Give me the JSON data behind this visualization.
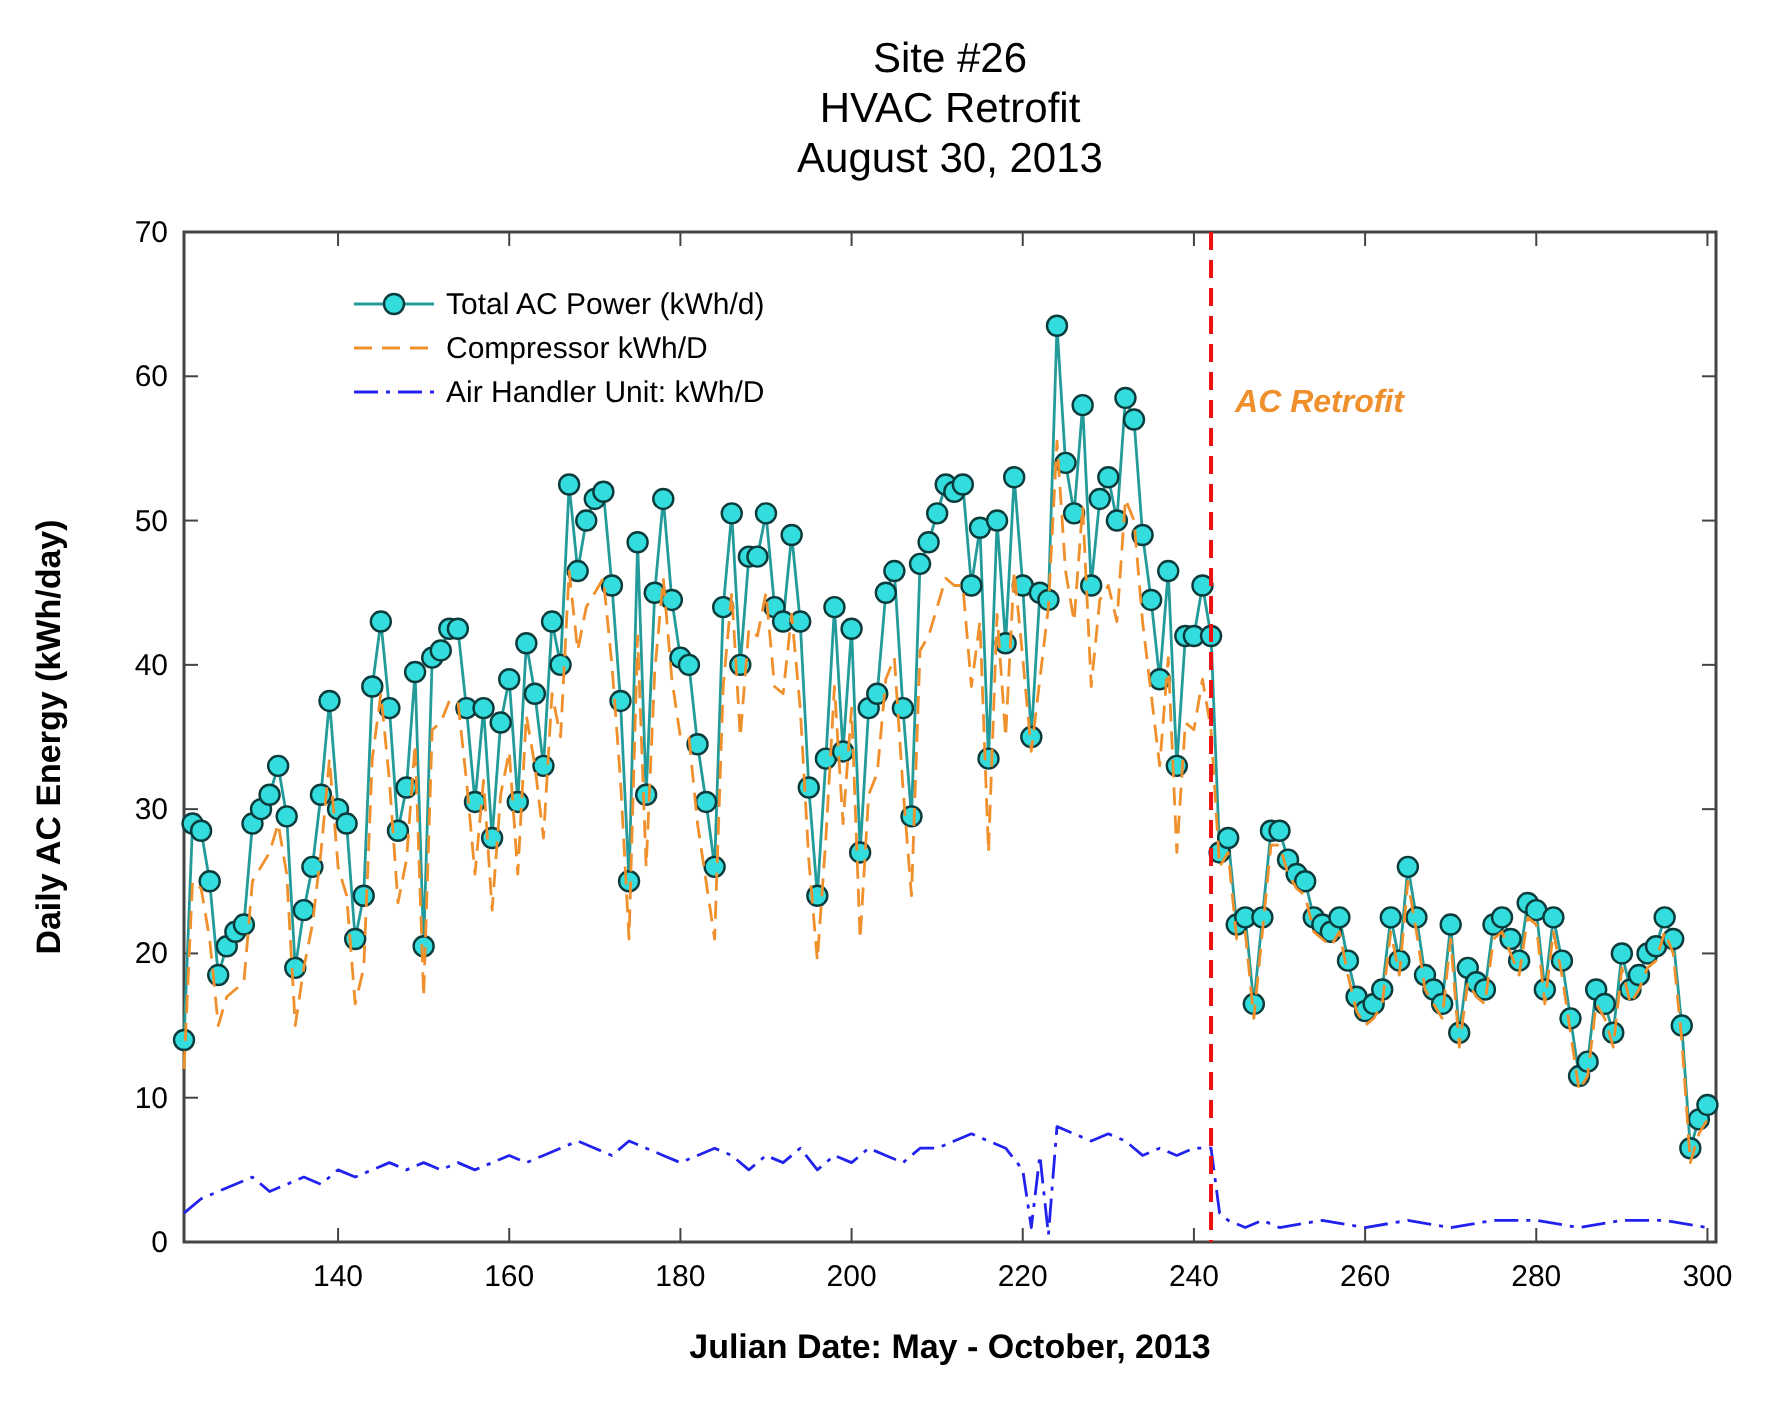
{
  "chart_data": {
    "type": "line",
    "title": "Site #26\nHVAC Retrofit\nAugust 30, 2013",
    "xlabel": "Julian Date: May  - October, 2013",
    "ylabel": "Daily AC Energy (kWh/day)",
    "xlim": [
      122,
      301
    ],
    "xticks": [
      140,
      160,
      180,
      200,
      220,
      240,
      260,
      280,
      300
    ],
    "ylim": [
      0,
      70
    ],
    "yticks": [
      0,
      10,
      20,
      30,
      40,
      50,
      60,
      70
    ],
    "grid": false,
    "legend": "top left",
    "ref_lines": [
      {
        "axis": "x",
        "value": 242,
        "label": "AC Retrofit",
        "color": "#ee1111",
        "line_style": "dashed"
      }
    ],
    "series": [
      {
        "name": "Total AC Power (kWh/d)",
        "color": "#33dddd",
        "marker": "circle",
        "line_style": "solid",
        "x": [
          122,
          123,
          124,
          125,
          126,
          127,
          128,
          129,
          130,
          131,
          132,
          133,
          134,
          135,
          136,
          137,
          138,
          139,
          140,
          141,
          142,
          143,
          144,
          145,
          146,
          147,
          148,
          149,
          150,
          151,
          152,
          153,
          154,
          155,
          156,
          157,
          158,
          159,
          160,
          161,
          162,
          163,
          164,
          165,
          166,
          167,
          168,
          169,
          170,
          171,
          172,
          173,
          174,
          175,
          176,
          177,
          178,
          179,
          180,
          181,
          182,
          183,
          184,
          185,
          186,
          187,
          188,
          189,
          190,
          191,
          192,
          193,
          194,
          195,
          196,
          197,
          198,
          199,
          200,
          201,
          202,
          203,
          204,
          205,
          206,
          207,
          208,
          209,
          210,
          211,
          212,
          213,
          214,
          215,
          216,
          217,
          218,
          219,
          220,
          221,
          222,
          223,
          224,
          225,
          226,
          227,
          228,
          229,
          230,
          231,
          232,
          233,
          234,
          235,
          236,
          237,
          238,
          239,
          240,
          241,
          242,
          243,
          244,
          245,
          246,
          247,
          248,
          249,
          250,
          251,
          252,
          253,
          254,
          255,
          256,
          257,
          258,
          259,
          260,
          261,
          262,
          263,
          264,
          265,
          266,
          267,
          268,
          269,
          270,
          271,
          272,
          273,
          274,
          275,
          276,
          277,
          278,
          279,
          280,
          281,
          282,
          283,
          284,
          285,
          286,
          287,
          288,
          289,
          290,
          291,
          292,
          293,
          294,
          295,
          296,
          297,
          298,
          299,
          300
        ],
        "values": [
          14,
          29,
          28.5,
          25,
          18.5,
          20.5,
          21.5,
          22,
          29,
          30,
          31,
          33,
          29.5,
          19,
          23,
          26,
          31,
          37.5,
          30,
          29,
          21,
          24,
          38.5,
          43,
          37,
          28.5,
          31.5,
          39.5,
          20.5,
          40.5,
          41,
          42.5,
          42.5,
          37,
          30.5,
          37,
          28,
          36,
          39,
          30.5,
          41.5,
          38,
          33,
          43,
          40,
          52.5,
          46.5,
          50,
          51.5,
          52,
          45.5,
          37.5,
          25,
          48.5,
          31,
          45,
          51.5,
          44.5,
          40.5,
          40,
          34.5,
          30.5,
          26,
          44,
          50.5,
          40,
          47.5,
          47.5,
          50.5,
          44,
          43,
          49,
          43,
          31.5,
          24,
          33.5,
          44,
          34,
          42.5,
          27,
          37,
          38,
          45,
          46.5,
          37,
          29.5,
          47,
          48.5,
          50.5,
          52.5,
          52,
          52.5,
          45.5,
          49.5,
          33.5,
          50,
          41.5,
          53,
          45.5,
          35,
          45,
          44.5,
          63.5,
          54,
          50.5,
          58,
          45.5,
          51.5,
          53,
          50,
          58.5,
          57,
          49,
          44.5,
          39,
          46.5,
          33,
          42,
          42,
          45.5,
          42,
          27,
          28,
          22,
          22.5,
          16.5,
          22.5,
          28.5,
          28.5,
          26.5,
          25.5,
          25,
          22.5,
          22,
          21.5,
          22.5,
          19.5,
          17,
          16,
          16.5,
          17.5,
          22.5,
          19.5,
          26,
          22.5,
          18.5,
          17.5,
          16.5,
          22,
          14.5,
          19,
          18,
          17.5,
          22,
          22.5,
          21,
          19.5,
          23.5,
          23,
          17.5,
          22.5,
          19.5,
          15.5,
          11.5,
          12.5,
          17.5,
          16.5,
          14.5,
          20,
          17.5,
          18.5,
          20,
          20.5,
          22.5,
          21,
          15,
          6.5,
          8.5,
          9.5
        ]
      },
      {
        "name": "Compressor kWh/D",
        "color": "#f0902c",
        "marker": "none",
        "line_style": "dashed",
        "x": [
          122,
          123,
          124,
          125,
          126,
          127,
          128,
          129,
          130,
          131,
          132,
          133,
          134,
          135,
          136,
          137,
          138,
          139,
          140,
          141,
          142,
          143,
          144,
          145,
          146,
          147,
          148,
          149,
          150,
          151,
          152,
          153,
          154,
          155,
          156,
          157,
          158,
          159,
          160,
          161,
          162,
          163,
          164,
          165,
          166,
          167,
          168,
          169,
          170,
          171,
          172,
          173,
          174,
          175,
          176,
          177,
          178,
          179,
          180,
          181,
          182,
          183,
          184,
          185,
          186,
          187,
          188,
          189,
          190,
          191,
          192,
          193,
          194,
          195,
          196,
          197,
          198,
          199,
          200,
          201,
          202,
          203,
          204,
          205,
          206,
          207,
          208,
          209,
          210,
          211,
          212,
          213,
          214,
          215,
          216,
          217,
          218,
          219,
          220,
          221,
          222,
          223,
          224,
          225,
          226,
          227,
          228,
          229,
          230,
          231,
          232,
          233,
          234,
          235,
          236,
          237,
          238,
          239,
          240,
          241,
          242,
          243,
          244,
          245,
          246,
          247,
          248,
          249,
          250,
          251,
          252,
          253,
          254,
          255,
          256,
          257,
          258,
          259,
          260,
          261,
          262,
          263,
          264,
          265,
          266,
          267,
          268,
          269,
          270,
          271,
          272,
          273,
          274,
          275,
          276,
          277,
          278,
          279,
          280,
          281,
          282,
          283,
          284,
          285,
          286,
          287,
          288,
          289,
          290,
          291,
          292,
          293,
          294,
          295,
          296,
          297,
          298,
          299,
          300
        ],
        "values": [
          12,
          25,
          24.5,
          21,
          15,
          17,
          17.5,
          18,
          25,
          26,
          27,
          29,
          25.5,
          15,
          19,
          22,
          27,
          33.5,
          26,
          24,
          16.5,
          19,
          33.5,
          38,
          32,
          23.5,
          26.5,
          34.5,
          17,
          35.5,
          36,
          37.5,
          37.5,
          32,
          25.5,
          32,
          23,
          31,
          34,
          25.5,
          36.5,
          33,
          28,
          38,
          35,
          46.5,
          41,
          44,
          45,
          46,
          40,
          32,
          21,
          42,
          26,
          39.5,
          46,
          39,
          35,
          35,
          29,
          25,
          21,
          38.5,
          45,
          35,
          42.5,
          42,
          45,
          38.5,
          38,
          43.5,
          37,
          26.5,
          19.5,
          28,
          38.5,
          29,
          37,
          21,
          31,
          32.5,
          39,
          40.5,
          31.5,
          24,
          41,
          42,
          44,
          46,
          45.5,
          45.5,
          38.5,
          43,
          27,
          43.5,
          35,
          46.5,
          40.5,
          34,
          39,
          44,
          55.5,
          46.5,
          43,
          51,
          38.5,
          44.5,
          45.5,
          43,
          51.5,
          50,
          43,
          38,
          33,
          40.5,
          27,
          36,
          35.5,
          39,
          35.5,
          26,
          27,
          21,
          21.5,
          15.5,
          21.5,
          27.5,
          27.5,
          25.5,
          24.5,
          24,
          21.5,
          21,
          20.5,
          21.5,
          18.5,
          16,
          15,
          15.5,
          16.5,
          21.5,
          18.5,
          25,
          21.5,
          17.5,
          16.5,
          15.5,
          21,
          13.5,
          18,
          17,
          16.5,
          21,
          21.5,
          20,
          18.5,
          22.5,
          22,
          16.5,
          21.5,
          18.5,
          14.5,
          10.5,
          11.5,
          16.5,
          15.5,
          13.5,
          19,
          16.5,
          17.5,
          19,
          19.5,
          21.5,
          20,
          14,
          5.5,
          7.5,
          8.5
        ]
      },
      {
        "name": "Air Handler Unit: kWh/D",
        "color": "#2222ee",
        "marker": "none",
        "line_style": "dashdot",
        "x": [
          122,
          124,
          126,
          128,
          130,
          132,
          134,
          136,
          138,
          140,
          142,
          144,
          146,
          148,
          150,
          152,
          154,
          156,
          158,
          160,
          162,
          164,
          166,
          168,
          170,
          172,
          174,
          176,
          178,
          180,
          182,
          184,
          186,
          188,
          190,
          192,
          194,
          196,
          198,
          200,
          202,
          204,
          206,
          208,
          210,
          212,
          214,
          216,
          218,
          220,
          221,
          222,
          223,
          224,
          226,
          228,
          230,
          232,
          234,
          236,
          238,
          240,
          242,
          243,
          244,
          246,
          248,
          250,
          255,
          260,
          265,
          270,
          275,
          280,
          285,
          290,
          295,
          300
        ],
        "values": [
          2,
          3,
          3.5,
          4,
          4.5,
          3.5,
          4,
          4.5,
          4,
          5,
          4.5,
          5,
          5.5,
          5,
          5.5,
          5,
          5.5,
          5,
          5.5,
          6,
          5.5,
          6,
          6.5,
          7,
          6.5,
          6,
          7,
          6.5,
          6,
          5.5,
          6,
          6.5,
          6,
          5,
          6,
          5.5,
          6.5,
          5,
          6,
          5.5,
          6.5,
          6,
          5.5,
          6.5,
          6.5,
          7,
          7.5,
          7,
          6.5,
          5,
          1,
          6,
          0.5,
          8,
          7.5,
          7,
          7.5,
          7,
          6,
          6.5,
          6,
          6.5,
          6.5,
          2,
          1.5,
          1,
          1.5,
          1,
          1.5,
          1,
          1.5,
          1,
          1.5,
          1.5,
          1,
          1.5,
          1.5,
          1
        ]
      }
    ]
  }
}
